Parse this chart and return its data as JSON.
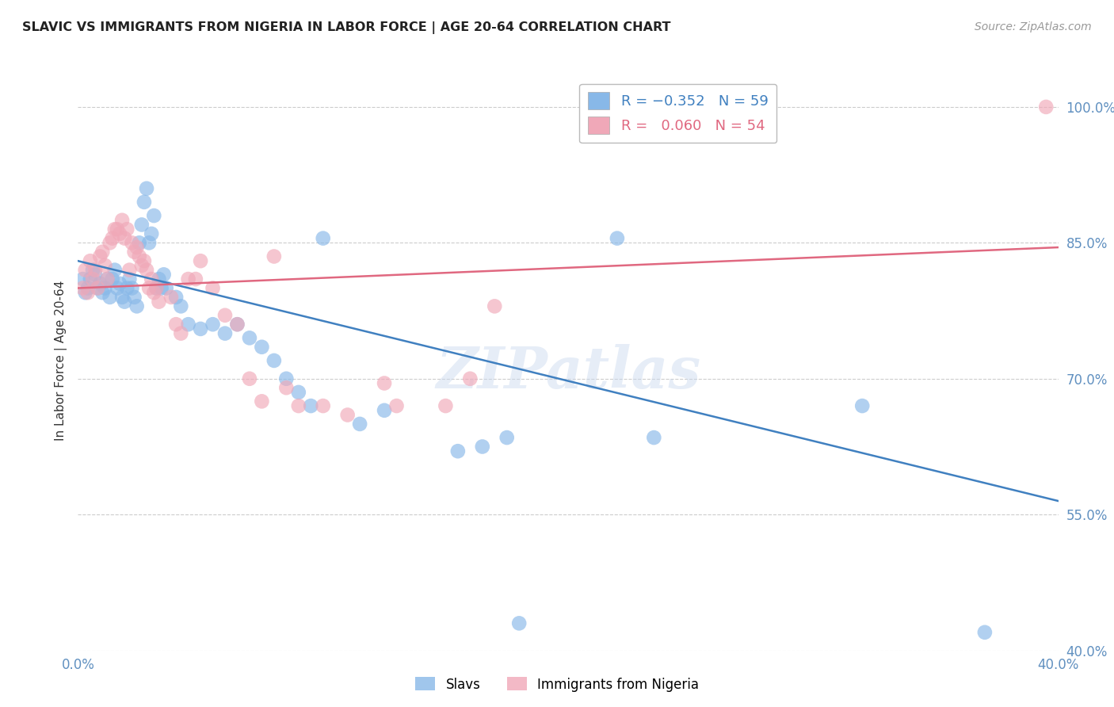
{
  "title": "SLAVIC VS IMMIGRANTS FROM NIGERIA IN LABOR FORCE | AGE 20-64 CORRELATION CHART",
  "source": "Source: ZipAtlas.com",
  "ylabel": "In Labor Force | Age 20-64",
  "xlim": [
    0.0,
    0.4
  ],
  "ylim": [
    0.4,
    1.04
  ],
  "xticks": [
    0.0,
    0.05,
    0.1,
    0.15,
    0.2,
    0.25,
    0.3,
    0.35,
    0.4
  ],
  "xticklabels": [
    "0.0%",
    "",
    "",
    "",
    "",
    "",
    "",
    "",
    "40.0%"
  ],
  "yticks": [
    0.4,
    0.55,
    0.7,
    0.85,
    1.0
  ],
  "yticklabels": [
    "40.0%",
    "55.0%",
    "70.0%",
    "85.0%",
    "100.0%"
  ],
  "blue_color": "#88b8e8",
  "pink_color": "#f0a8b8",
  "blue_line_color": "#4080c0",
  "pink_line_color": "#e06880",
  "watermark": "ZIPatlas",
  "background_color": "#ffffff",
  "grid_color": "#cccccc",
  "axis_label_color": "#6090c0",
  "blue_trend_x": [
    0.0,
    0.4
  ],
  "blue_trend_y": [
    0.83,
    0.565
  ],
  "pink_trend_x": [
    0.0,
    0.4
  ],
  "pink_trend_y": [
    0.8,
    0.845
  ],
  "blue_scatter": [
    [
      0.002,
      0.81
    ],
    [
      0.003,
      0.795
    ],
    [
      0.004,
      0.8
    ],
    [
      0.005,
      0.81
    ],
    [
      0.006,
      0.82
    ],
    [
      0.007,
      0.815
    ],
    [
      0.008,
      0.8
    ],
    [
      0.009,
      0.805
    ],
    [
      0.01,
      0.795
    ],
    [
      0.011,
      0.8
    ],
    [
      0.012,
      0.81
    ],
    [
      0.013,
      0.79
    ],
    [
      0.014,
      0.81
    ],
    [
      0.015,
      0.82
    ],
    [
      0.016,
      0.8
    ],
    [
      0.017,
      0.805
    ],
    [
      0.018,
      0.79
    ],
    [
      0.019,
      0.785
    ],
    [
      0.02,
      0.8
    ],
    [
      0.021,
      0.81
    ],
    [
      0.022,
      0.8
    ],
    [
      0.023,
      0.79
    ],
    [
      0.024,
      0.78
    ],
    [
      0.025,
      0.85
    ],
    [
      0.026,
      0.87
    ],
    [
      0.027,
      0.895
    ],
    [
      0.028,
      0.91
    ],
    [
      0.029,
      0.85
    ],
    [
      0.03,
      0.86
    ],
    [
      0.031,
      0.88
    ],
    [
      0.032,
      0.8
    ],
    [
      0.033,
      0.81
    ],
    [
      0.034,
      0.8
    ],
    [
      0.035,
      0.815
    ],
    [
      0.036,
      0.8
    ],
    [
      0.04,
      0.79
    ],
    [
      0.042,
      0.78
    ],
    [
      0.045,
      0.76
    ],
    [
      0.05,
      0.755
    ],
    [
      0.055,
      0.76
    ],
    [
      0.06,
      0.75
    ],
    [
      0.065,
      0.76
    ],
    [
      0.07,
      0.745
    ],
    [
      0.075,
      0.735
    ],
    [
      0.08,
      0.72
    ],
    [
      0.085,
      0.7
    ],
    [
      0.09,
      0.685
    ],
    [
      0.095,
      0.67
    ],
    [
      0.1,
      0.855
    ],
    [
      0.115,
      0.65
    ],
    [
      0.125,
      0.665
    ],
    [
      0.155,
      0.62
    ],
    [
      0.165,
      0.625
    ],
    [
      0.175,
      0.635
    ],
    [
      0.18,
      0.43
    ],
    [
      0.22,
      0.855
    ],
    [
      0.235,
      0.635
    ],
    [
      0.32,
      0.67
    ],
    [
      0.37,
      0.42
    ]
  ],
  "pink_scatter": [
    [
      0.002,
      0.8
    ],
    [
      0.003,
      0.82
    ],
    [
      0.004,
      0.795
    ],
    [
      0.005,
      0.83
    ],
    [
      0.006,
      0.81
    ],
    [
      0.007,
      0.82
    ],
    [
      0.008,
      0.8
    ],
    [
      0.009,
      0.835
    ],
    [
      0.01,
      0.84
    ],
    [
      0.011,
      0.825
    ],
    [
      0.012,
      0.81
    ],
    [
      0.013,
      0.85
    ],
    [
      0.014,
      0.855
    ],
    [
      0.015,
      0.865
    ],
    [
      0.016,
      0.865
    ],
    [
      0.017,
      0.86
    ],
    [
      0.018,
      0.875
    ],
    [
      0.019,
      0.855
    ],
    [
      0.02,
      0.865
    ],
    [
      0.021,
      0.82
    ],
    [
      0.022,
      0.85
    ],
    [
      0.023,
      0.84
    ],
    [
      0.024,
      0.845
    ],
    [
      0.025,
      0.835
    ],
    [
      0.026,
      0.825
    ],
    [
      0.027,
      0.83
    ],
    [
      0.028,
      0.82
    ],
    [
      0.029,
      0.8
    ],
    [
      0.03,
      0.81
    ],
    [
      0.031,
      0.795
    ],
    [
      0.032,
      0.8
    ],
    [
      0.033,
      0.785
    ],
    [
      0.038,
      0.79
    ],
    [
      0.04,
      0.76
    ],
    [
      0.042,
      0.75
    ],
    [
      0.045,
      0.81
    ],
    [
      0.048,
      0.81
    ],
    [
      0.05,
      0.83
    ],
    [
      0.055,
      0.8
    ],
    [
      0.06,
      0.77
    ],
    [
      0.065,
      0.76
    ],
    [
      0.07,
      0.7
    ],
    [
      0.075,
      0.675
    ],
    [
      0.08,
      0.835
    ],
    [
      0.085,
      0.69
    ],
    [
      0.09,
      0.67
    ],
    [
      0.1,
      0.67
    ],
    [
      0.11,
      0.66
    ],
    [
      0.125,
      0.695
    ],
    [
      0.13,
      0.67
    ],
    [
      0.15,
      0.67
    ],
    [
      0.16,
      0.7
    ],
    [
      0.17,
      0.78
    ],
    [
      0.395,
      1.0
    ]
  ]
}
